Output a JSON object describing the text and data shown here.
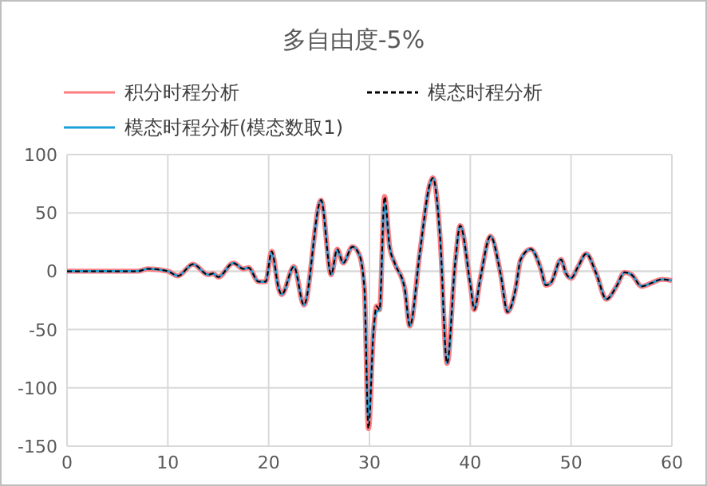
{
  "chart_data": {
    "type": "line",
    "title": "多自由度-5%",
    "legend": "top",
    "grid": true,
    "xlim": [
      0,
      60
    ],
    "xticks": [
      0,
      10,
      20,
      30,
      40,
      50,
      60
    ],
    "ylim": [
      -150,
      100
    ],
    "yticks": [
      -150,
      -100,
      -50,
      0,
      50,
      100
    ],
    "x": [
      0,
      2,
      4,
      6,
      7,
      8,
      10,
      11,
      12.5,
      14,
      14.5,
      15,
      16.5,
      17.5,
      18,
      19,
      19.7,
      20.3,
      21,
      21.3,
      22.5,
      23.5,
      25.2,
      26.2,
      26.8,
      27.4,
      28.3,
      29,
      29.5,
      29.9,
      30.4,
      30.7,
      31,
      31.5,
      32,
      32.5,
      33.5,
      34,
      35,
      36,
      36.3,
      37,
      37.7,
      38.5,
      39,
      40,
      40.4,
      41,
      42,
      43,
      43.7,
      44.5,
      45,
      46,
      47,
      47.5,
      48,
      49,
      49.5,
      50,
      50.7,
      51.5,
      52.5,
      53.5,
      54.5,
      55.3,
      56,
      57,
      58,
      59,
      60
    ],
    "series": [
      {
        "name": "积分时程分析",
        "color": "#ff7c80",
        "values": [
          0,
          0,
          0,
          0,
          0,
          2,
          0,
          -4,
          6,
          -3,
          -2,
          -5,
          7,
          2,
          3,
          -9,
          -9,
          17,
          -15,
          -20,
          4,
          -29,
          61,
          -3,
          19,
          7,
          21,
          14,
          -15,
          -135,
          -52,
          -30,
          -33,
          64,
          21,
          7,
          -15,
          -47,
          16,
          75,
          80,
          30,
          -79,
          7,
          39,
          -11,
          -33,
          -6,
          30,
          -2,
          -35,
          -15,
          10,
          19,
          2,
          -12,
          -10,
          10,
          -2,
          -6,
          4,
          15,
          -2,
          -24,
          -13,
          -1,
          -3,
          -13,
          -10,
          -7,
          -8
        ]
      },
      {
        "name": "模态时程分析",
        "color": "#000000",
        "line_style": "dashed",
        "values": [
          0,
          0,
          0,
          0,
          0,
          2,
          0,
          -4,
          6,
          -3,
          -2,
          -5,
          7,
          2,
          3,
          -9,
          -9,
          17,
          -15,
          -20,
          4,
          -29,
          61,
          -3,
          19,
          7,
          21,
          14,
          -15,
          -135,
          -52,
          -30,
          -33,
          64,
          21,
          7,
          -15,
          -47,
          16,
          75,
          80,
          30,
          -79,
          7,
          39,
          -11,
          -33,
          -6,
          30,
          -2,
          -35,
          -15,
          10,
          19,
          2,
          -12,
          -10,
          10,
          -2,
          -6,
          4,
          15,
          -2,
          -24,
          -13,
          -1,
          -3,
          -13,
          -10,
          -7,
          -8
        ]
      },
      {
        "name": "模态时程分析(模态数取1)",
        "color": "#1ca0dc",
        "values": [
          0,
          0,
          0,
          0,
          0,
          2,
          0,
          -4,
          6,
          -3,
          -2,
          -5,
          7,
          2,
          3,
          -9,
          -9,
          16,
          -15,
          -20,
          4,
          -29,
          61,
          -3,
          18,
          7,
          21,
          14,
          -15,
          -128,
          -50,
          -35,
          -33,
          58,
          21,
          7,
          -15,
          -47,
          16,
          75,
          80,
          30,
          -79,
          7,
          39,
          -11,
          -31,
          -6,
          30,
          -2,
          -35,
          -15,
          10,
          19,
          2,
          -12,
          -10,
          10,
          -2,
          -6,
          4,
          15,
          -2,
          -24,
          -13,
          -1,
          -3,
          -13,
          -10,
          -7,
          -8
        ]
      }
    ]
  }
}
